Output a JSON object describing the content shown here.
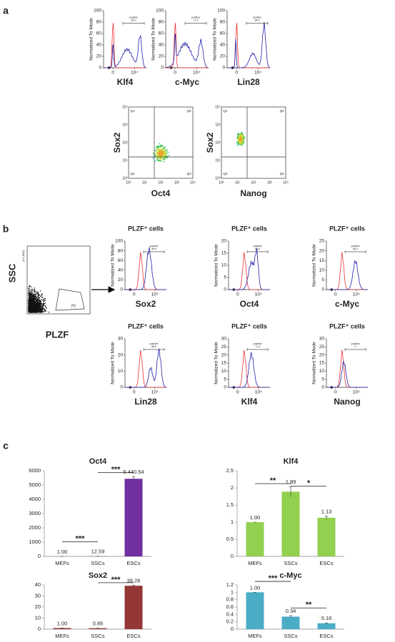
{
  "figure": {
    "panel_a": {
      "label": "a",
      "histograms": [
        {
          "marker": "Klf4",
          "ylabel": "Normalized To Mode",
          "ylim": [
            0,
            100
          ],
          "yticks": [
            0,
            20,
            40,
            60,
            80,
            100
          ],
          "xticks": [
            "0",
            "10⁴"
          ],
          "gate_label": "positive",
          "gate_value": "90.0"
        },
        {
          "marker": "c-Myc",
          "ylabel": "Normalized To Mode",
          "ylim": [
            0,
            100
          ],
          "yticks": [
            0,
            20,
            40,
            60,
            80,
            100
          ],
          "xticks": [
            "0",
            "10⁴"
          ],
          "gate_label": "positive",
          "gate_value": "71.3"
        },
        {
          "marker": "Lin28",
          "ylabel": "Normalized To Mode",
          "ylim": [
            0,
            100
          ],
          "yticks": [
            0,
            20,
            40,
            60,
            80,
            100
          ],
          "xticks": [
            "0",
            "10⁴"
          ],
          "gate_label": "positive",
          "gate_value": "84.5"
        }
      ],
      "scatters": [
        {
          "ylabel": "Sox2",
          "xlabel": "Oct4",
          "quadrants": [
            "Q1",
            "Q2",
            "Q3",
            "Q4"
          ],
          "ticks": [
            "10⁰",
            "10¹",
            "10²",
            "10³",
            "10⁴"
          ]
        },
        {
          "ylabel": "Sox2",
          "xlabel": "Nanog",
          "quadrants": [
            "Q1",
            "Q2",
            "Q3",
            "Q4"
          ],
          "ticks": [
            "10⁰",
            "10¹",
            "10²",
            "10³",
            "10⁴"
          ]
        }
      ]
    },
    "panel_b": {
      "label": "b",
      "gating": {
        "ylabel": "SSC",
        "xlabel": "PLZF",
        "unit": "(x 1,000)",
        "gate": "P2"
      },
      "histograms": [
        {
          "title": "PLZF⁺ cells",
          "marker": "Sox2",
          "ylabel": "Normalized To Mode",
          "ylim": [
            0,
            100
          ],
          "yticks": [
            0,
            20,
            40,
            60,
            80,
            100
          ],
          "xticks": [
            "0",
            "10⁴"
          ],
          "gate_label": "positive",
          "gate_value": "96.9"
        },
        {
          "title": "PLZF⁺ cells",
          "marker": "Oct4",
          "ylabel": "Normalized To Mode",
          "ylim": [
            0,
            20
          ],
          "yticks": [
            0,
            5,
            10,
            15,
            20
          ],
          "xticks": [
            "0",
            "10⁴"
          ],
          "gate_label": "positive",
          "gate_value": "56.5"
        },
        {
          "title": "PLZF⁺ cells",
          "marker": "c-Myc",
          "ylabel": "Normalized To Mode",
          "ylim": [
            0,
            25
          ],
          "yticks": [
            0,
            5,
            10,
            15,
            20,
            25
          ],
          "xticks": [
            "0",
            "10⁴"
          ],
          "gate_label": "positive",
          "gate_value": "84.2"
        },
        {
          "title": "PLZF⁺ cells",
          "marker": "Lin28",
          "ylabel": "Normalized To Mode",
          "ylim": [
            0,
            30
          ],
          "yticks": [
            0,
            10,
            20,
            30
          ],
          "xticks": [
            "0",
            "10⁴"
          ],
          "gate_label": "positive",
          "gate_value": "68.6"
        },
        {
          "title": "PLZF⁺ cells",
          "marker": "Klf4",
          "ylabel": "Normalized To Mode",
          "ylim": [
            0,
            30
          ],
          "yticks": [
            0,
            5,
            10,
            15,
            20,
            25,
            30
          ],
          "xticks": [
            "0",
            "10⁴"
          ],
          "gate_label": "positive",
          "gate_value": "71.4"
        },
        {
          "title": "PLZF⁺ cells",
          "marker": "Nanog",
          "ylabel": "Normalized To Mode",
          "ylim": [
            0,
            30
          ],
          "yticks": [
            0,
            5,
            10,
            15,
            20,
            25,
            30
          ],
          "xticks": [
            "0",
            "10⁴"
          ],
          "gate_label": "positive",
          "gate_value": "0"
        }
      ]
    },
    "panel_c": {
      "label": "c"
    }
  },
  "chart_data": [
    {
      "type": "bar",
      "title": "Oct4",
      "categories": [
        "MEFs",
        "SSCs",
        "ESCs"
      ],
      "values": [
        1,
        12.59,
        5440.54
      ],
      "value_labels": [
        "1.00",
        "12.59",
        "5 440.54"
      ],
      "errors": [
        0,
        1,
        150
      ],
      "color": "#7030a0",
      "ylim": [
        0,
        6000
      ],
      "yticks": [
        0,
        1000,
        2000,
        3000,
        4000,
        5000,
        6000
      ],
      "annotations": [
        "***",
        "***"
      ]
    },
    {
      "type": "bar",
      "title": "Klf4",
      "categories": [
        "MEFs",
        "SSCs",
        "ESCs"
      ],
      "values": [
        1,
        1.89,
        1.13
      ],
      "value_labels": [
        "1.00",
        "1.89",
        "1.13"
      ],
      "errors": [
        0,
        0.15,
        0.05
      ],
      "color": "#92d050",
      "ylim": [
        0,
        2.5
      ],
      "yticks": [
        0,
        0.5,
        1,
        1.5,
        2,
        2.5
      ],
      "annotations": [
        "**",
        "*"
      ]
    },
    {
      "type": "bar",
      "title": "Sox2",
      "categories": [
        "MEFs",
        "SSCs",
        "ESCs"
      ],
      "values": [
        1,
        0.85,
        39.26
      ],
      "value_labels": [
        "1.00",
        "0.85",
        "39.26"
      ],
      "errors": [
        0,
        0,
        0.3
      ],
      "color": "#953735",
      "ylim": [
        0,
        40
      ],
      "yticks": [
        0,
        10,
        20,
        30,
        40
      ],
      "annotations": [
        "***"
      ]
    },
    {
      "type": "bar",
      "title": "c-Myc",
      "categories": [
        "MEFs",
        "SSCs",
        "ESCs"
      ],
      "values": [
        1,
        0.34,
        0.16
      ],
      "value_labels": [
        "1.00",
        "0.34",
        "0.16"
      ],
      "errors": [
        0,
        0.03,
        0.01
      ],
      "color": "#4bacc6",
      "ylim": [
        0,
        1.2
      ],
      "yticks": [
        0,
        0.2,
        0.4,
        0.6,
        0.8,
        1,
        1.2
      ],
      "annotations": [
        "***",
        "**"
      ]
    }
  ]
}
